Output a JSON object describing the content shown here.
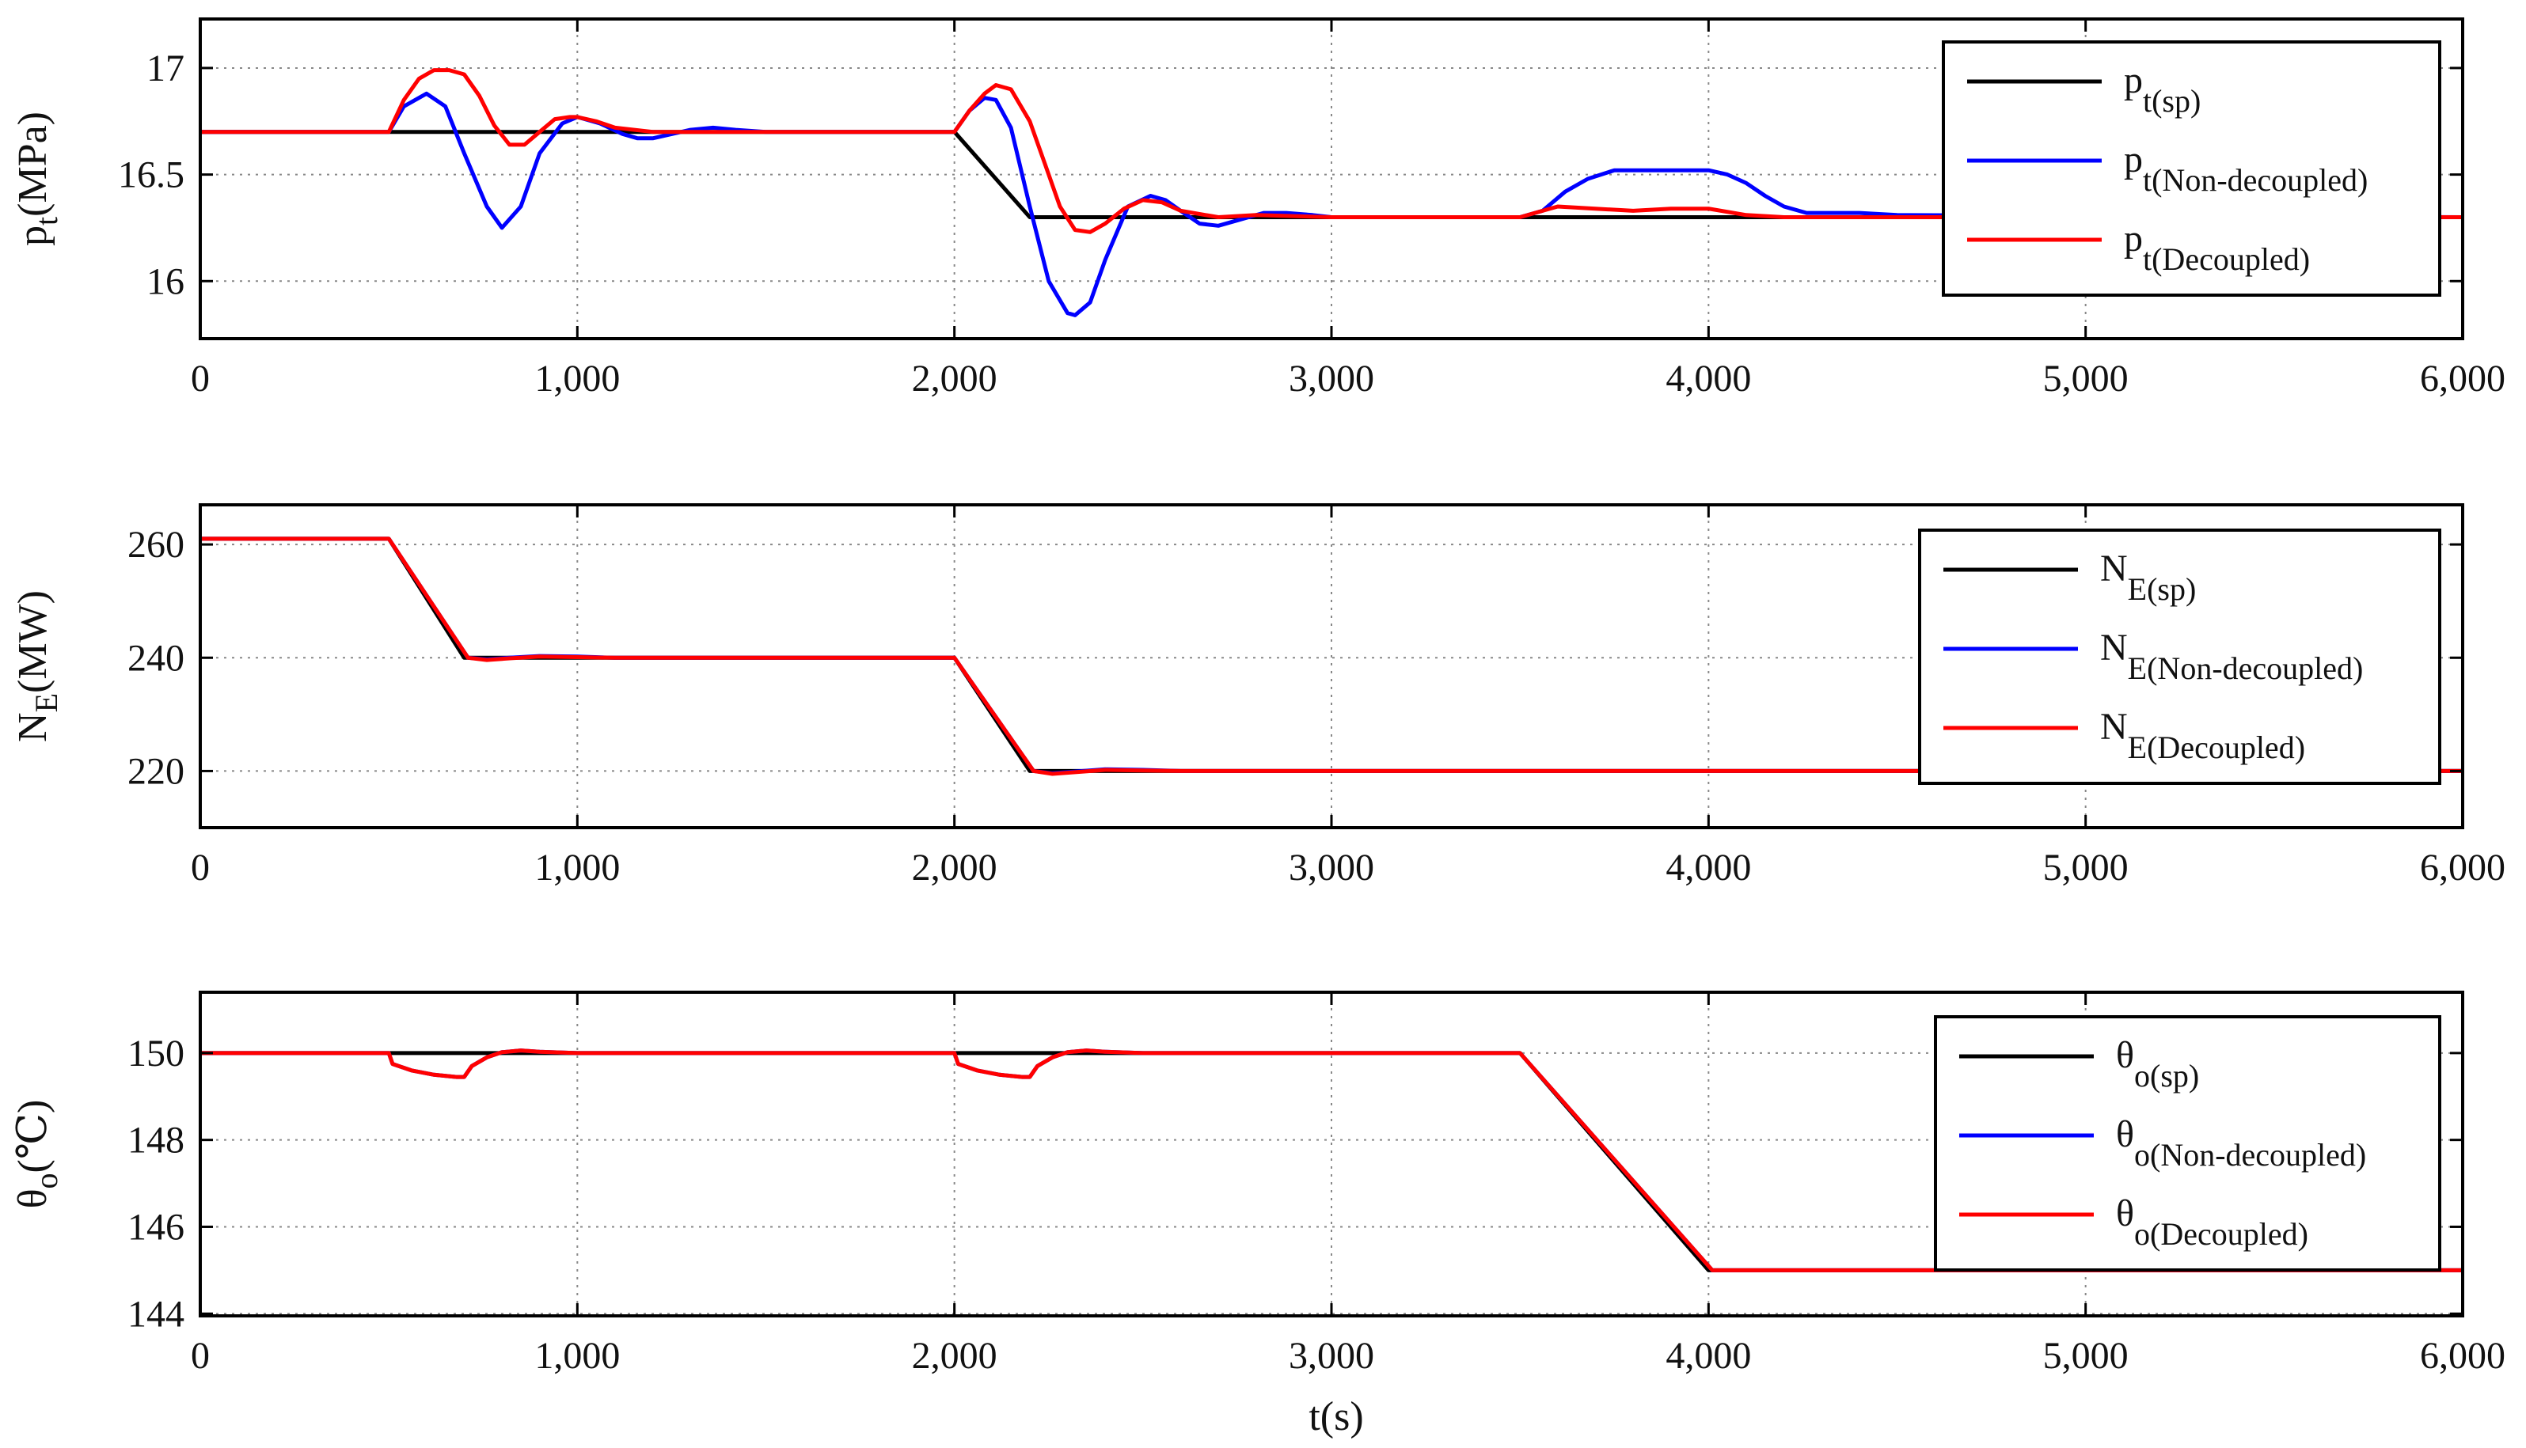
{
  "chart_data": [
    {
      "type": "line",
      "id": "pt",
      "ylabel_main": "p",
      "ylabel_sub": "t",
      "ylabel_unit": "(MPa)",
      "xlabel": "",
      "xlim": [
        0,
        6000
      ],
      "ylim": [
        15.73,
        17.23
      ],
      "yticks": [
        16,
        16.5,
        17
      ],
      "ytick_labels": [
        "16",
        "16.5",
        "17"
      ],
      "xticks": [
        0,
        1000,
        2000,
        3000,
        4000,
        5000,
        6000
      ],
      "xtick_labels": [
        "0",
        "1,000",
        "2,000",
        "3,000",
        "4,000",
        "5,000",
        "6,000"
      ],
      "grid": true,
      "legend_position": "top-right",
      "series": [
        {
          "name": "p",
          "sub": "t(sp)",
          "color": "#000000",
          "x": [
            0,
            500,
            2000,
            2200,
            6000
          ],
          "y": [
            16.7,
            16.7,
            16.7,
            16.3,
            16.3
          ]
        },
        {
          "name": "p",
          "sub": "t(Non-decoupled)",
          "color": "#0000ff",
          "x": [
            0,
            500,
            540,
            600,
            650,
            700,
            760,
            800,
            850,
            900,
            960,
            1000,
            1060,
            1120,
            1160,
            1200,
            1250,
            1300,
            1360,
            1420,
            1500,
            1700,
            2000,
            2040,
            2080,
            2110,
            2150,
            2200,
            2250,
            2300,
            2320,
            2360,
            2400,
            2460,
            2520,
            2560,
            2600,
            2650,
            2700,
            2760,
            2820,
            2880,
            2950,
            3000,
            3500,
            3560,
            3620,
            3680,
            3750,
            3850,
            4000,
            4050,
            4100,
            4150,
            4200,
            4260,
            4300,
            4400,
            4500,
            6000
          ],
          "y": [
            16.7,
            16.7,
            16.82,
            16.88,
            16.82,
            16.6,
            16.35,
            16.25,
            16.35,
            16.6,
            16.74,
            16.77,
            16.74,
            16.69,
            16.67,
            16.67,
            16.69,
            16.71,
            16.72,
            16.71,
            16.7,
            16.7,
            16.7,
            16.8,
            16.86,
            16.85,
            16.72,
            16.35,
            16.0,
            15.85,
            15.84,
            15.9,
            16.1,
            16.35,
            16.4,
            16.38,
            16.33,
            16.27,
            16.26,
            16.29,
            16.32,
            16.32,
            16.31,
            16.3,
            16.3,
            16.33,
            16.42,
            16.48,
            16.52,
            16.52,
            16.52,
            16.5,
            16.46,
            16.4,
            16.35,
            16.32,
            16.32,
            16.32,
            16.31,
            16.3
          ]
        },
        {
          "name": "p",
          "sub": "t(Decoupled)",
          "color": "#ff0000",
          "x": [
            0,
            500,
            540,
            580,
            620,
            660,
            700,
            740,
            780,
            820,
            860,
            900,
            940,
            980,
            1000,
            1050,
            1100,
            1200,
            1300,
            1400,
            2000,
            2040,
            2080,
            2110,
            2150,
            2200,
            2240,
            2280,
            2320,
            2360,
            2400,
            2450,
            2500,
            2550,
            2600,
            2700,
            2800,
            3000,
            3500,
            3560,
            3600,
            3700,
            3800,
            3900,
            4000,
            4100,
            4200,
            6000
          ],
          "y": [
            16.7,
            16.7,
            16.85,
            16.95,
            16.99,
            16.99,
            16.97,
            16.87,
            16.73,
            16.64,
            16.64,
            16.7,
            16.76,
            16.77,
            16.77,
            16.75,
            16.72,
            16.7,
            16.7,
            16.7,
            16.7,
            16.8,
            16.88,
            16.92,
            16.9,
            16.75,
            16.55,
            16.35,
            16.24,
            16.23,
            16.27,
            16.34,
            16.38,
            16.37,
            16.33,
            16.3,
            16.31,
            16.3,
            16.3,
            16.33,
            16.35,
            16.34,
            16.33,
            16.34,
            16.34,
            16.31,
            16.3,
            16.3
          ]
        }
      ]
    },
    {
      "type": "line",
      "id": "ne",
      "ylabel_main": "N",
      "ylabel_sub": "E",
      "ylabel_unit": "(MW)",
      "xlabel": "",
      "xlim": [
        0,
        6000
      ],
      "ylim": [
        210,
        267
      ],
      "yticks": [
        220,
        240,
        260
      ],
      "ytick_labels": [
        "220",
        "240",
        "260"
      ],
      "xticks": [
        0,
        1000,
        2000,
        3000,
        4000,
        5000,
        6000
      ],
      "xtick_labels": [
        "0",
        "1,000",
        "2,000",
        "3,000",
        "4,000",
        "5,000",
        "6,000"
      ],
      "grid": true,
      "legend_position": "top-right",
      "series": [
        {
          "name": "N",
          "sub": "E(sp)",
          "color": "#000000",
          "x": [
            0,
            500,
            700,
            2000,
            2200,
            6000
          ],
          "y": [
            261,
            261,
            240,
            240,
            220,
            220
          ]
        },
        {
          "name": "N",
          "sub": "E(Non-decoupled)",
          "color": "#0000ff",
          "x": [
            0,
            500,
            710,
            760,
            820,
            900,
            1000,
            1100,
            2000,
            2210,
            2260,
            2320,
            2400,
            2500,
            2600,
            6000
          ],
          "y": [
            261,
            261,
            240,
            239.7,
            240,
            240.3,
            240.2,
            240,
            240,
            220,
            219.6,
            219.9,
            220.3,
            220.2,
            220,
            220
          ]
        },
        {
          "name": "N",
          "sub": "E(Decoupled)",
          "color": "#ff0000",
          "x": [
            0,
            500,
            710,
            760,
            820,
            900,
            1000,
            1100,
            2000,
            2210,
            2260,
            2320,
            2400,
            2500,
            2600,
            6000
          ],
          "y": [
            261,
            261,
            240,
            239.6,
            239.9,
            240.2,
            240.1,
            240,
            240,
            220,
            219.5,
            219.8,
            220.2,
            220.1,
            220,
            220
          ]
        }
      ]
    },
    {
      "type": "line",
      "id": "theta",
      "ylabel_main": "θ",
      "ylabel_sub": "o",
      "ylabel_unit": "(℃)",
      "xlabel": "t(s)",
      "xlim": [
        0,
        6000
      ],
      "ylim": [
        143.95,
        151.4
      ],
      "yticks": [
        144,
        146,
        148,
        150
      ],
      "ytick_labels": [
        "144",
        "146",
        "148",
        "150"
      ],
      "xticks": [
        0,
        1000,
        2000,
        3000,
        4000,
        5000,
        6000
      ],
      "xtick_labels": [
        "0",
        "1,000",
        "2,000",
        "3,000",
        "4,000",
        "5,000",
        "6,000"
      ],
      "grid": true,
      "legend_position": "top-right",
      "series": [
        {
          "name": "θ",
          "sub": "o(sp)",
          "color": "#000000",
          "x": [
            0,
            3500,
            4000,
            6000
          ],
          "y": [
            150,
            150,
            145,
            145
          ]
        },
        {
          "name": "θ",
          "sub": "o(Non-decoupled)",
          "color": "#0000ff",
          "x": [
            0,
            500,
            510,
            560,
            620,
            680,
            700,
            720,
            760,
            800,
            850,
            900,
            1000,
            2000,
            2010,
            2060,
            2120,
            2180,
            2200,
            2220,
            2260,
            2300,
            2350,
            2400,
            2500,
            3500,
            4010,
            6000
          ],
          "y": [
            150,
            150,
            149.75,
            149.6,
            149.5,
            149.45,
            149.45,
            149.7,
            149.9,
            150.02,
            150.06,
            150.03,
            150,
            150,
            149.75,
            149.6,
            149.5,
            149.45,
            149.45,
            149.7,
            149.9,
            150.02,
            150.06,
            150.03,
            150,
            150,
            145,
            145
          ]
        },
        {
          "name": "θ",
          "sub": "o(Decoupled)",
          "color": "#ff0000",
          "x": [
            0,
            500,
            510,
            560,
            620,
            680,
            700,
            720,
            760,
            800,
            850,
            900,
            1000,
            2000,
            2010,
            2060,
            2120,
            2180,
            2200,
            2220,
            2260,
            2300,
            2350,
            2400,
            2500,
            3500,
            4010,
            6000
          ],
          "y": [
            150,
            150,
            149.75,
            149.6,
            149.5,
            149.45,
            149.45,
            149.7,
            149.9,
            150.02,
            150.06,
            150.03,
            150,
            150,
            149.75,
            149.6,
            149.5,
            149.45,
            149.45,
            149.7,
            149.9,
            150.02,
            150.06,
            150.03,
            150,
            150,
            145,
            145
          ]
        }
      ]
    }
  ]
}
